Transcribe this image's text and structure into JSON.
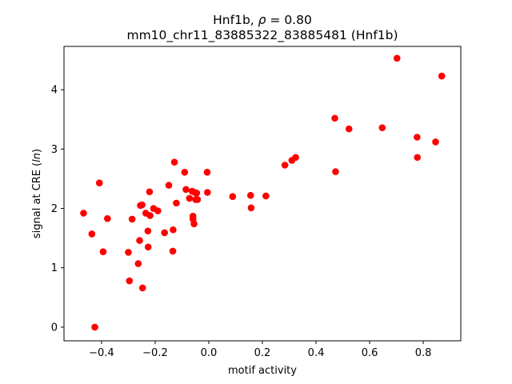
{
  "chart_data": {
    "type": "scatter",
    "title_line1_prefix": "Hnf1b, ",
    "title_rho_symbol": "ρ",
    "title_rho_text": " = 0.80",
    "title_line2": "mm10_chr11_83885322_83885481 (Hnf1b)",
    "xlabel": "motif activity",
    "ylabel_prefix": "signal at CRE (",
    "ylabel_italic": "ln",
    "ylabel_suffix": ")",
    "xlim": [
      -0.54,
      0.94
    ],
    "ylim": [
      -0.23,
      4.73
    ],
    "xticks": [
      -0.4,
      -0.2,
      0.0,
      0.2,
      0.4,
      0.6,
      0.8
    ],
    "xtick_labels": [
      "−0.4",
      "−0.2",
      "0.0",
      "0.2",
      "0.4",
      "0.6",
      "0.8"
    ],
    "yticks": [
      0,
      1,
      2,
      3,
      4
    ],
    "ytick_labels": [
      "0",
      "1",
      "2",
      "3",
      "4"
    ],
    "grid": false,
    "marker_color": "#ff0000",
    "points": [
      [
        -0.467,
        1.92
      ],
      [
        -0.436,
        1.57
      ],
      [
        -0.425,
        0.0
      ],
      [
        -0.408,
        2.43
      ],
      [
        -0.394,
        1.27
      ],
      [
        -0.378,
        1.83
      ],
      [
        -0.3,
        1.26
      ],
      [
        -0.296,
        0.78
      ],
      [
        -0.286,
        1.82
      ],
      [
        -0.263,
        1.07
      ],
      [
        -0.258,
        1.46
      ],
      [
        -0.255,
        2.05
      ],
      [
        -0.249,
        2.06
      ],
      [
        -0.247,
        0.66
      ],
      [
        -0.235,
        1.92
      ],
      [
        -0.227,
        1.62
      ],
      [
        -0.226,
        1.35
      ],
      [
        -0.221,
        2.28
      ],
      [
        -0.219,
        1.88
      ],
      [
        -0.206,
        2.0
      ],
      [
        -0.19,
        1.96
      ],
      [
        -0.165,
        1.59
      ],
      [
        -0.149,
        2.39
      ],
      [
        -0.134,
        1.28
      ],
      [
        -0.133,
        1.64
      ],
      [
        -0.128,
        2.78
      ],
      [
        -0.121,
        2.09
      ],
      [
        -0.09,
        2.61
      ],
      [
        -0.085,
        2.32
      ],
      [
        -0.072,
        2.17
      ],
      [
        -0.062,
        2.29
      ],
      [
        -0.059,
        1.87
      ],
      [
        -0.059,
        1.82
      ],
      [
        -0.055,
        1.74
      ],
      [
        -0.053,
        2.27
      ],
      [
        -0.049,
        2.15
      ],
      [
        -0.045,
        2.26
      ],
      [
        -0.042,
        2.15
      ],
      [
        -0.006,
        2.61
      ],
      [
        -0.005,
        2.27
      ],
      [
        0.089,
        2.2
      ],
      [
        0.156,
        2.22
      ],
      [
        0.158,
        2.01
      ],
      [
        0.213,
        2.21
      ],
      [
        0.284,
        2.73
      ],
      [
        0.31,
        2.81
      ],
      [
        0.324,
        2.86
      ],
      [
        0.47,
        3.52
      ],
      [
        0.473,
        2.62
      ],
      [
        0.523,
        3.34
      ],
      [
        0.647,
        3.36
      ],
      [
        0.702,
        4.53
      ],
      [
        0.777,
        3.2
      ],
      [
        0.778,
        2.86
      ],
      [
        0.846,
        3.12
      ],
      [
        0.869,
        4.23
      ]
    ]
  }
}
